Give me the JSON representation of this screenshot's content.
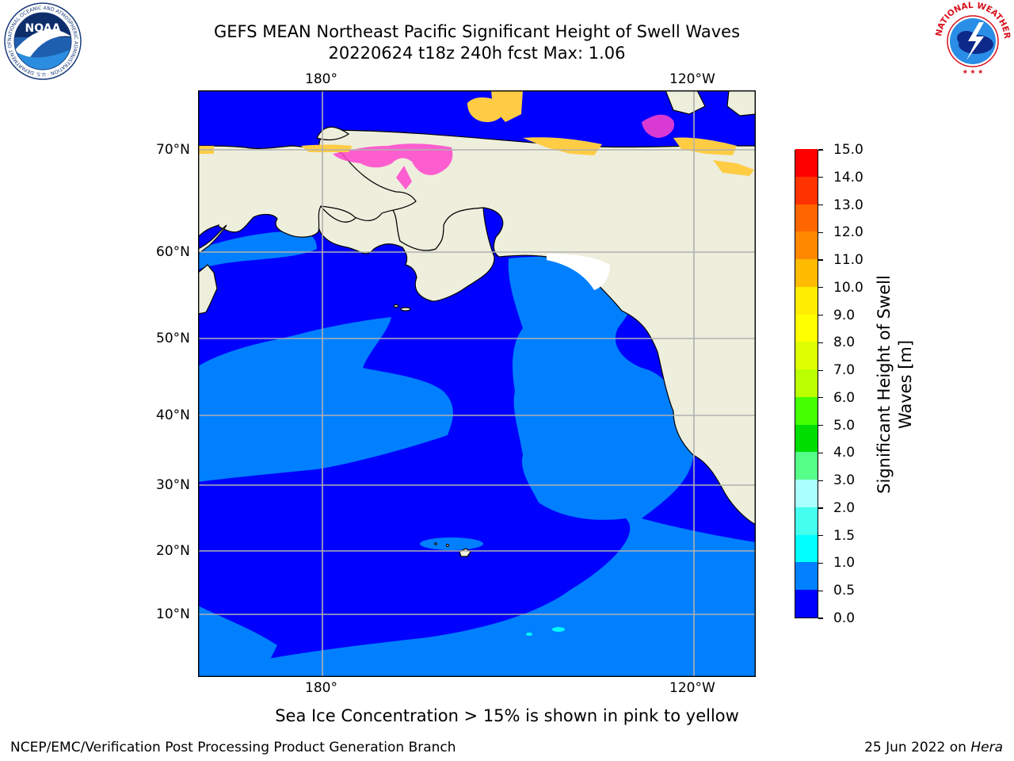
{
  "header": {
    "title_line1": "GEFS MEAN Northeast Pacific Significant Height of Swell Waves",
    "title_line2": "20220624 t18z 240h fcst   Max: 1.06"
  },
  "logos": {
    "noaa": {
      "center_text": "NOAA",
      "ring_text": "NATIONAL OCEANIC AND ATMOSPHERIC ADMINISTRATION · U.S. DEPARTMENT OF COMMERCE"
    },
    "nws": {
      "ring_text": "NATIONAL WEATHER SERVICE"
    }
  },
  "map": {
    "lon_labels_top": [
      "180°",
      "120°W"
    ],
    "lon_labels_bottom": [
      "180°",
      "120°W"
    ],
    "lat_labels": [
      "70°N",
      "60°N",
      "50°N",
      "40°N",
      "30°N",
      "20°N",
      "10°N"
    ],
    "colors": {
      "land": "#EEEEDD",
      "swell_0_0_5": "#0000FF",
      "swell_0_5_1_0": "#0080FF",
      "swell_1_0_1_5": "#00FFFF",
      "sea_ice_pink": "#FF44CC",
      "sea_ice_yellow": "#FFCC44",
      "grid": "#B0B0B0"
    }
  },
  "colorbar": {
    "title": "Significant Height of Swell Waves [m]",
    "tick_labels": [
      "0.0",
      "0.5",
      "1.0",
      "1.5",
      "2.0",
      "3.0",
      "4.0",
      "5.0",
      "6.0",
      "7.0",
      "8.0",
      "9.0",
      "10.0",
      "11.0",
      "12.0",
      "13.0",
      "14.0",
      "15.0"
    ],
    "colors": [
      "#0000FF",
      "#0080FF",
      "#00FFFF",
      "#44FFEE",
      "#AAFFFF",
      "#55FF88",
      "#00DD00",
      "#44FF00",
      "#BBFF00",
      "#DDFF00",
      "#FFFF00",
      "#FFEE00",
      "#FFBB00",
      "#FF8800",
      "#FF6600",
      "#FF3300",
      "#FF0000"
    ]
  },
  "chart_data": {
    "type": "heatmap",
    "title": "GEFS MEAN Northeast Pacific Significant Height of Swell Waves",
    "subtitle": "20220624 t18z 240h fcst   Max: 1.06",
    "variable": "Significant Height of Swell Waves [m]",
    "max_value": 1.06,
    "levels": [
      0.0,
      0.5,
      1.0,
      1.5,
      2.0,
      3.0,
      4.0,
      5.0,
      6.0,
      7.0,
      8.0,
      9.0,
      10.0,
      11.0,
      12.0,
      13.0,
      14.0,
      15.0
    ],
    "longitude_ticks": [
      "180°",
      "120°W"
    ],
    "latitude_ticks": [
      "70°N",
      "60°N",
      "50°N",
      "40°N",
      "30°N",
      "20°N",
      "10°N"
    ],
    "grid": true
  },
  "footer": {
    "note": "Sea Ice Concentration > 15% is shown in pink to yellow",
    "left": "NCEP/EMC/Verification Post Processing Product Generation Branch",
    "right_prefix": "25 Jun 2022 on ",
    "right_host": "Hera"
  }
}
